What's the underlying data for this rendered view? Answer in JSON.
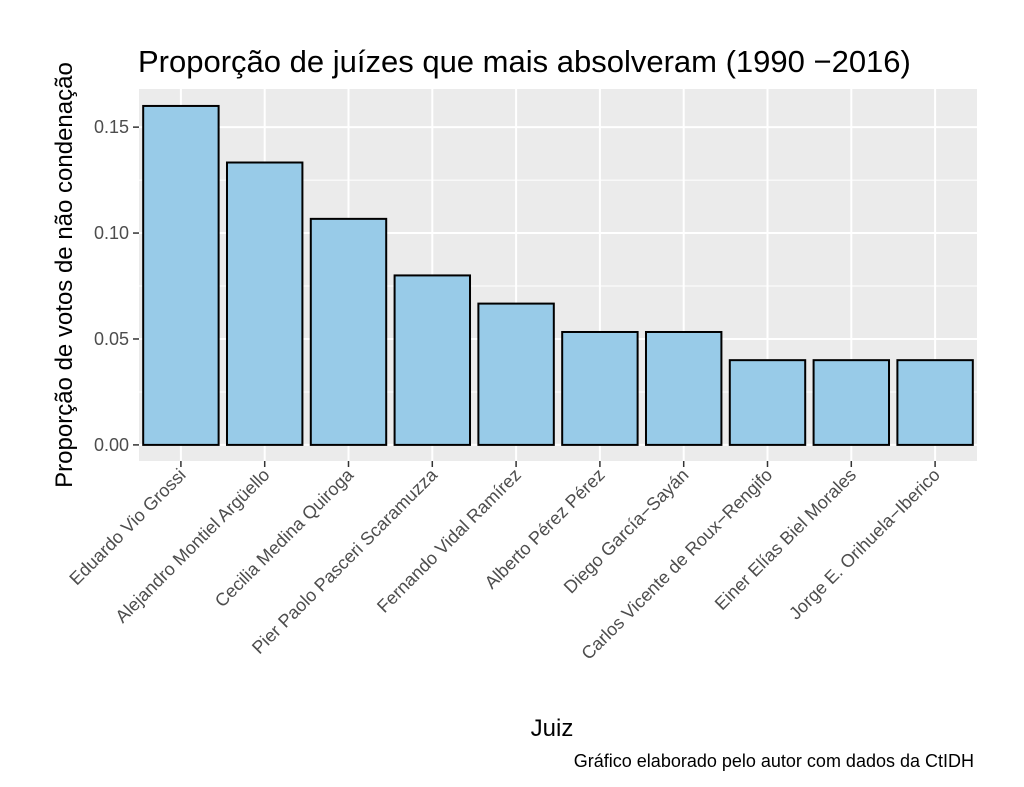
{
  "chart_data": {
    "type": "bar",
    "title": "Proporção de juízes que mais absolveram (1990 −2016)",
    "xlabel": "Juiz",
    "ylabel": "Proporção de votos de não condenação",
    "caption": "Gráfico elaborado pelo autor com dados da CtIDH",
    "categories": [
      "Eduardo Vio Grossi",
      "Alejandro Montiel Argüello",
      "Cecilia Medina Quiroga",
      "Pier Paolo Pasceri Scaramuzza",
      "Fernando Vidal Ramírez",
      "Alberto Pérez Pérez",
      "Diego García−Sayán",
      "Carlos Vicente de Roux−Rengifo",
      "Einer Elías Biel Morales",
      "Jorge E. Orihuela−Iberico"
    ],
    "values": [
      0.16,
      0.1333,
      0.1067,
      0.08,
      0.0667,
      0.0533,
      0.0533,
      0.04,
      0.04,
      0.04
    ],
    "yticks": [
      0.0,
      0.05,
      0.1,
      0.15
    ],
    "ytick_labels": [
      "0.00",
      "0.05",
      "0.10",
      "0.15"
    ],
    "ylim": [
      -0.0076,
      0.168
    ],
    "grid": true,
    "legend": "none",
    "colors": {
      "bar_fill": "#98cbe8",
      "bar_stroke": "#000000",
      "panel_background": "#ebebeb",
      "gridline": "#ffffff"
    }
  }
}
